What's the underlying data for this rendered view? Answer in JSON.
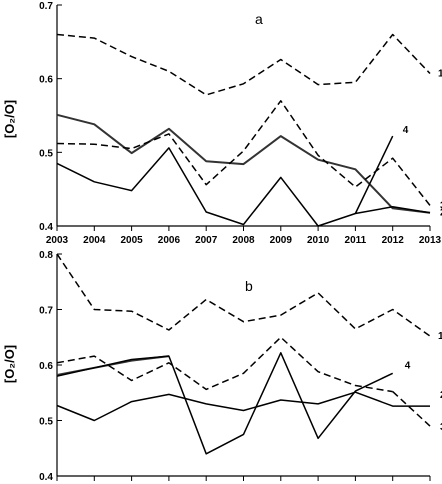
{
  "chart_data": [
    {
      "type": "line",
      "panel": "a",
      "ylabel": "[O₂/O]",
      "ylim": [
        0.4,
        0.7
      ],
      "yticks": [
        "0.4",
        "0.5",
        "0.6",
        "0.7"
      ],
      "x": [
        2003,
        2004,
        2005,
        2006,
        2007,
        2008,
        2009,
        2010,
        2011,
        2012,
        2013
      ],
      "xtick_labels": [
        "2003",
        "2004",
        "2005",
        "2006",
        "2007",
        "2008",
        "2009",
        "2010",
        "2011",
        "2012",
        "2013"
      ],
      "grid": false,
      "series": [
        {
          "name": "1",
          "style": "dashed",
          "color": "#000000",
          "x": [
            2003,
            2004,
            2005,
            2006,
            2007,
            2008,
            2009,
            2010,
            2011,
            2012,
            2013
          ],
          "values": [
            0.66,
            0.655,
            0.63,
            0.61,
            0.578,
            0.593,
            0.626,
            0.592,
            0.595,
            0.66,
            0.607
          ]
        },
        {
          "name": "",
          "style": "solid-bold",
          "color": "#333333",
          "x": [
            2003,
            2004,
            2005,
            2006,
            2007,
            2008,
            2009,
            2010,
            2011,
            2012,
            2013
          ],
          "values": [
            0.551,
            0.538,
            0.499,
            0.532,
            0.488,
            0.484,
            0.522,
            0.49,
            0.477,
            0.424,
            0.418
          ]
        },
        {
          "name": "3",
          "style": "dashed",
          "color": "#000000",
          "x": [
            2003,
            2004,
            2005,
            2006,
            2007,
            2008,
            2009,
            2010,
            2011,
            2012,
            2013
          ],
          "values": [
            0.512,
            0.511,
            0.505,
            0.525,
            0.456,
            0.502,
            0.57,
            0.496,
            0.453,
            0.492,
            0.428
          ]
        },
        {
          "name": "2",
          "style": "solid",
          "color": "#000000",
          "x": [
            2003,
            2004,
            2005,
            2006,
            2007,
            2008,
            2009,
            2010,
            2011,
            2012,
            2013
          ],
          "values": [
            0.485,
            0.46,
            0.448,
            0.506,
            0.419,
            0.402,
            0.466,
            0.4,
            0.417,
            0.426,
            0.418
          ]
        },
        {
          "name": "4",
          "style": "solid",
          "color": "#000000",
          "x": [
            2011,
            2012
          ],
          "values": [
            0.417,
            0.522
          ]
        }
      ]
    },
    {
      "type": "line",
      "panel": "b",
      "ylabel": "[O₂/O]",
      "ylim": [
        0.4,
        0.8
      ],
      "yticks": [
        "0.4",
        "0.5",
        "0.6",
        "0.7",
        "0.8"
      ],
      "x": [
        2003,
        2004,
        2005,
        2006,
        2007,
        2008,
        2009,
        2010,
        2011,
        2012,
        2013
      ],
      "grid": false,
      "series": [
        {
          "name": "1",
          "style": "dashed",
          "color": "#000000",
          "x": [
            2003,
            2004,
            2005,
            2006,
            2007,
            2008,
            2009,
            2010,
            2011,
            2012,
            2013
          ],
          "values": [
            0.8,
            0.7,
            0.697,
            0.663,
            0.718,
            0.678,
            0.69,
            0.73,
            0.665,
            0.7,
            0.652
          ]
        },
        {
          "name": "",
          "style": "solid-bold",
          "color": "#333333",
          "x": [
            2003,
            2004,
            2005,
            2006
          ],
          "values": [
            0.582,
            0.595,
            0.608,
            0.616
          ]
        },
        {
          "name": "",
          "style": "dashed",
          "color": "#000000",
          "x": [
            2003,
            2004,
            2005,
            2006,
            2007,
            2008,
            2009,
            2010,
            2011,
            2012
          ],
          "values": [
            0.604,
            0.616,
            0.572,
            0.604,
            0.556,
            0.585,
            0.65,
            0.588,
            0.563,
            0.552
          ]
        },
        {
          "name": "3",
          "style": "dashed",
          "color": "#000000",
          "x": [
            2012,
            2013
          ],
          "values": [
            0.552,
            0.49
          ]
        },
        {
          "name": "2",
          "style": "solid",
          "color": "#000000",
          "x": [
            2003,
            2004,
            2005,
            2006,
            2007,
            2008,
            2009,
            2010,
            2011,
            2012,
            2013
          ],
          "values": [
            0.527,
            0.5,
            0.534,
            0.547,
            0.53,
            0.518,
            0.537,
            0.53,
            0.551,
            0.526,
            0.526
          ]
        },
        {
          "name": "4",
          "style": "solid",
          "color": "#000000",
          "x": [
            2003,
            2004,
            2005,
            2006,
            2007,
            2008,
            2009,
            2010,
            2011,
            2012
          ],
          "values": [
            0.58,
            0.595,
            0.61,
            0.616,
            0.44,
            0.475,
            0.622,
            0.468,
            0.553,
            0.585
          ]
        }
      ]
    }
  ]
}
